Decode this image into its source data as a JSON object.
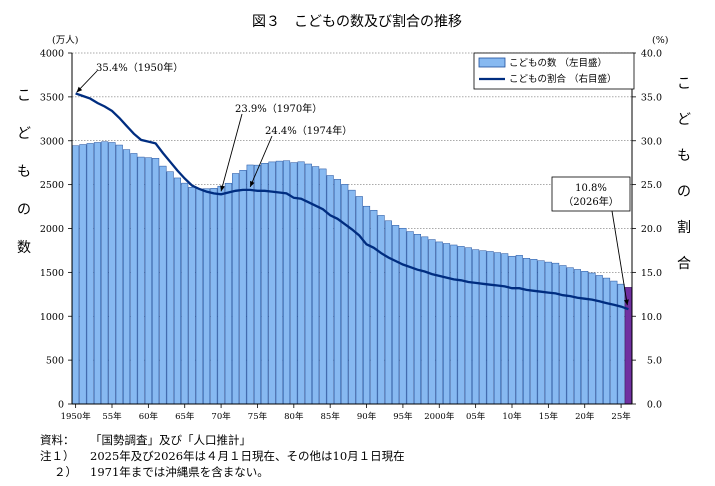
{
  "chart_data": {
    "type": "bar+line",
    "title": "図３　こどもの数及び割合の推移",
    "y_left_label": "こどもの数",
    "y_left_unit": "(万人)",
    "y_right_label": "こどもの割合",
    "y_right_unit": "(%)",
    "ylim_left": [
      0,
      4000
    ],
    "ylim_right": [
      0,
      40
    ],
    "y_left_ticks": [
      "0",
      "500",
      "1000",
      "1500",
      "2000",
      "2500",
      "3000",
      "3500",
      "4000"
    ],
    "y_right_ticks": [
      "0.0",
      "5.0",
      "10.0",
      "15.0",
      "20.0",
      "25.0",
      "30.0",
      "35.0",
      "40.0"
    ],
    "x_ticks": [
      {
        "year": 1950,
        "label": "1950年"
      },
      {
        "year": 1955,
        "label": "55年"
      },
      {
        "year": 1960,
        "label": "60年"
      },
      {
        "year": 1965,
        "label": "65年"
      },
      {
        "year": 1970,
        "label": "70年"
      },
      {
        "year": 1975,
        "label": "75年"
      },
      {
        "year": 1980,
        "label": "80年"
      },
      {
        "year": 1985,
        "label": "85年"
      },
      {
        "year": 1990,
        "label": "90年"
      },
      {
        "year": 1995,
        "label": "95年"
      },
      {
        "year": 2000,
        "label": "2000年"
      },
      {
        "year": 2005,
        "label": "05年"
      },
      {
        "year": 2010,
        "label": "10年"
      },
      {
        "year": 2015,
        "label": "15年"
      },
      {
        "year": 2020,
        "label": "20年"
      },
      {
        "year": 2025,
        "label": "25年"
      }
    ],
    "legend": {
      "bar": "こどもの数 （左目盛）",
      "line": "こどもの割合 （右目盛）",
      "position": "top-right"
    },
    "bar_color": "#87b9f1",
    "bar_highlight_color": "#7030a0",
    "line_color": "#002d80",
    "highlight_year": 2026,
    "years": [
      1950,
      1951,
      1952,
      1953,
      1954,
      1955,
      1956,
      1957,
      1958,
      1959,
      1960,
      1961,
      1962,
      1963,
      1964,
      1965,
      1966,
      1967,
      1968,
      1969,
      1970,
      1971,
      1972,
      1973,
      1974,
      1975,
      1976,
      1977,
      1978,
      1979,
      1980,
      1981,
      1982,
      1983,
      1984,
      1985,
      1986,
      1987,
      1988,
      1989,
      1990,
      1991,
      1992,
      1993,
      1994,
      1995,
      1996,
      1997,
      1998,
      1999,
      2000,
      2001,
      2002,
      2003,
      2004,
      2005,
      2006,
      2007,
      2008,
      2009,
      2010,
      2011,
      2012,
      2013,
      2014,
      2015,
      2016,
      2017,
      2018,
      2019,
      2020,
      2021,
      2022,
      2023,
      2024,
      2025,
      2026
    ],
    "children_10k": [
      2943,
      2957,
      2969,
      2980,
      2989,
      2980,
      2951,
      2899,
      2855,
      2814,
      2807,
      2800,
      2711,
      2647,
      2576,
      2517,
      2470,
      2452,
      2453,
      2458,
      2482,
      2516,
      2627,
      2663,
      2724,
      2722,
      2743,
      2759,
      2768,
      2772,
      2751,
      2760,
      2735,
      2706,
      2679,
      2604,
      2560,
      2503,
      2437,
      2365,
      2254,
      2208,
      2149,
      2088,
      2036,
      2003,
      1965,
      1934,
      1905,
      1874,
      1847,
      1829,
      1812,
      1796,
      1781,
      1759,
      1747,
      1738,
      1725,
      1714,
      1684,
      1694,
      1660,
      1649,
      1633,
      1617,
      1605,
      1578,
      1553,
      1533,
      1512,
      1493,
      1465,
      1435,
      1401,
      1366,
      1329
    ],
    "ratio_pct": [
      35.4,
      35.1,
      34.8,
      34.3,
      33.9,
      33.4,
      32.6,
      31.7,
      30.8,
      30.1,
      29.9,
      29.7,
      28.6,
      27.6,
      26.6,
      25.7,
      24.9,
      24.5,
      24.2,
      24.0,
      23.9,
      24.1,
      24.3,
      24.4,
      24.4,
      24.3,
      24.3,
      24.2,
      24.1,
      24.0,
      23.5,
      23.4,
      23.0,
      22.6,
      22.2,
      21.5,
      21.1,
      20.5,
      19.9,
      19.2,
      18.2,
      17.8,
      17.2,
      16.7,
      16.3,
      15.9,
      15.6,
      15.3,
      15.1,
      14.8,
      14.6,
      14.4,
      14.2,
      14.1,
      13.9,
      13.8,
      13.7,
      13.6,
      13.5,
      13.4,
      13.2,
      13.2,
      13.0,
      12.9,
      12.8,
      12.7,
      12.6,
      12.4,
      12.3,
      12.1,
      12.0,
      11.9,
      11.7,
      11.5,
      11.3,
      11.1,
      10.8
    ],
    "annotations": [
      {
        "year": 1950,
        "text": "35.4%（1950年）"
      },
      {
        "year": 1970,
        "text": "23.9%（1970年）"
      },
      {
        "year": 1974,
        "text": "24.4%（1974年）"
      },
      {
        "year": 2026,
        "text_line1": "10.8%",
        "text_line2": "（2026年）"
      }
    ]
  },
  "notes": [
    {
      "key": "資料：",
      "text": "「国勢調査」及び「人口推計」"
    },
    {
      "key": "注１）",
      "text": "2025年及び2026年は４月１日現在、その他は10月１日現在"
    },
    {
      "key": "２）",
      "text": "1971年までは沖縄県を含まない。"
    }
  ]
}
